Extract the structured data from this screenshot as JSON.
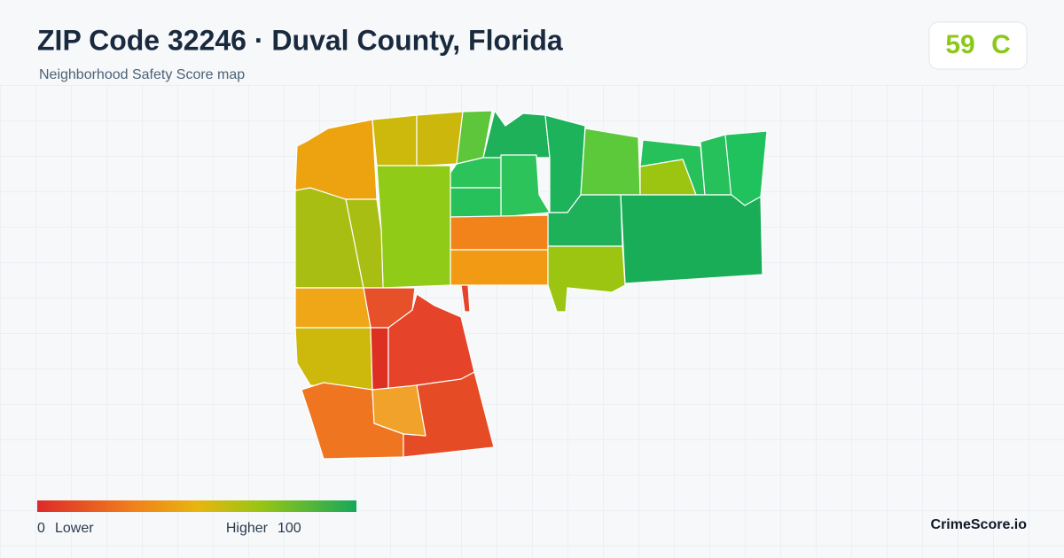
{
  "header": {
    "title": "ZIP Code 32246 · Duval County, Florida",
    "subtitle": "Neighborhood Safety Score map"
  },
  "score": {
    "value": 59,
    "grade": "C"
  },
  "legend": {
    "min": 0,
    "min_label": "Lower",
    "max_label": "Higher",
    "max": 100
  },
  "brand": "CrimeScore.io"
}
